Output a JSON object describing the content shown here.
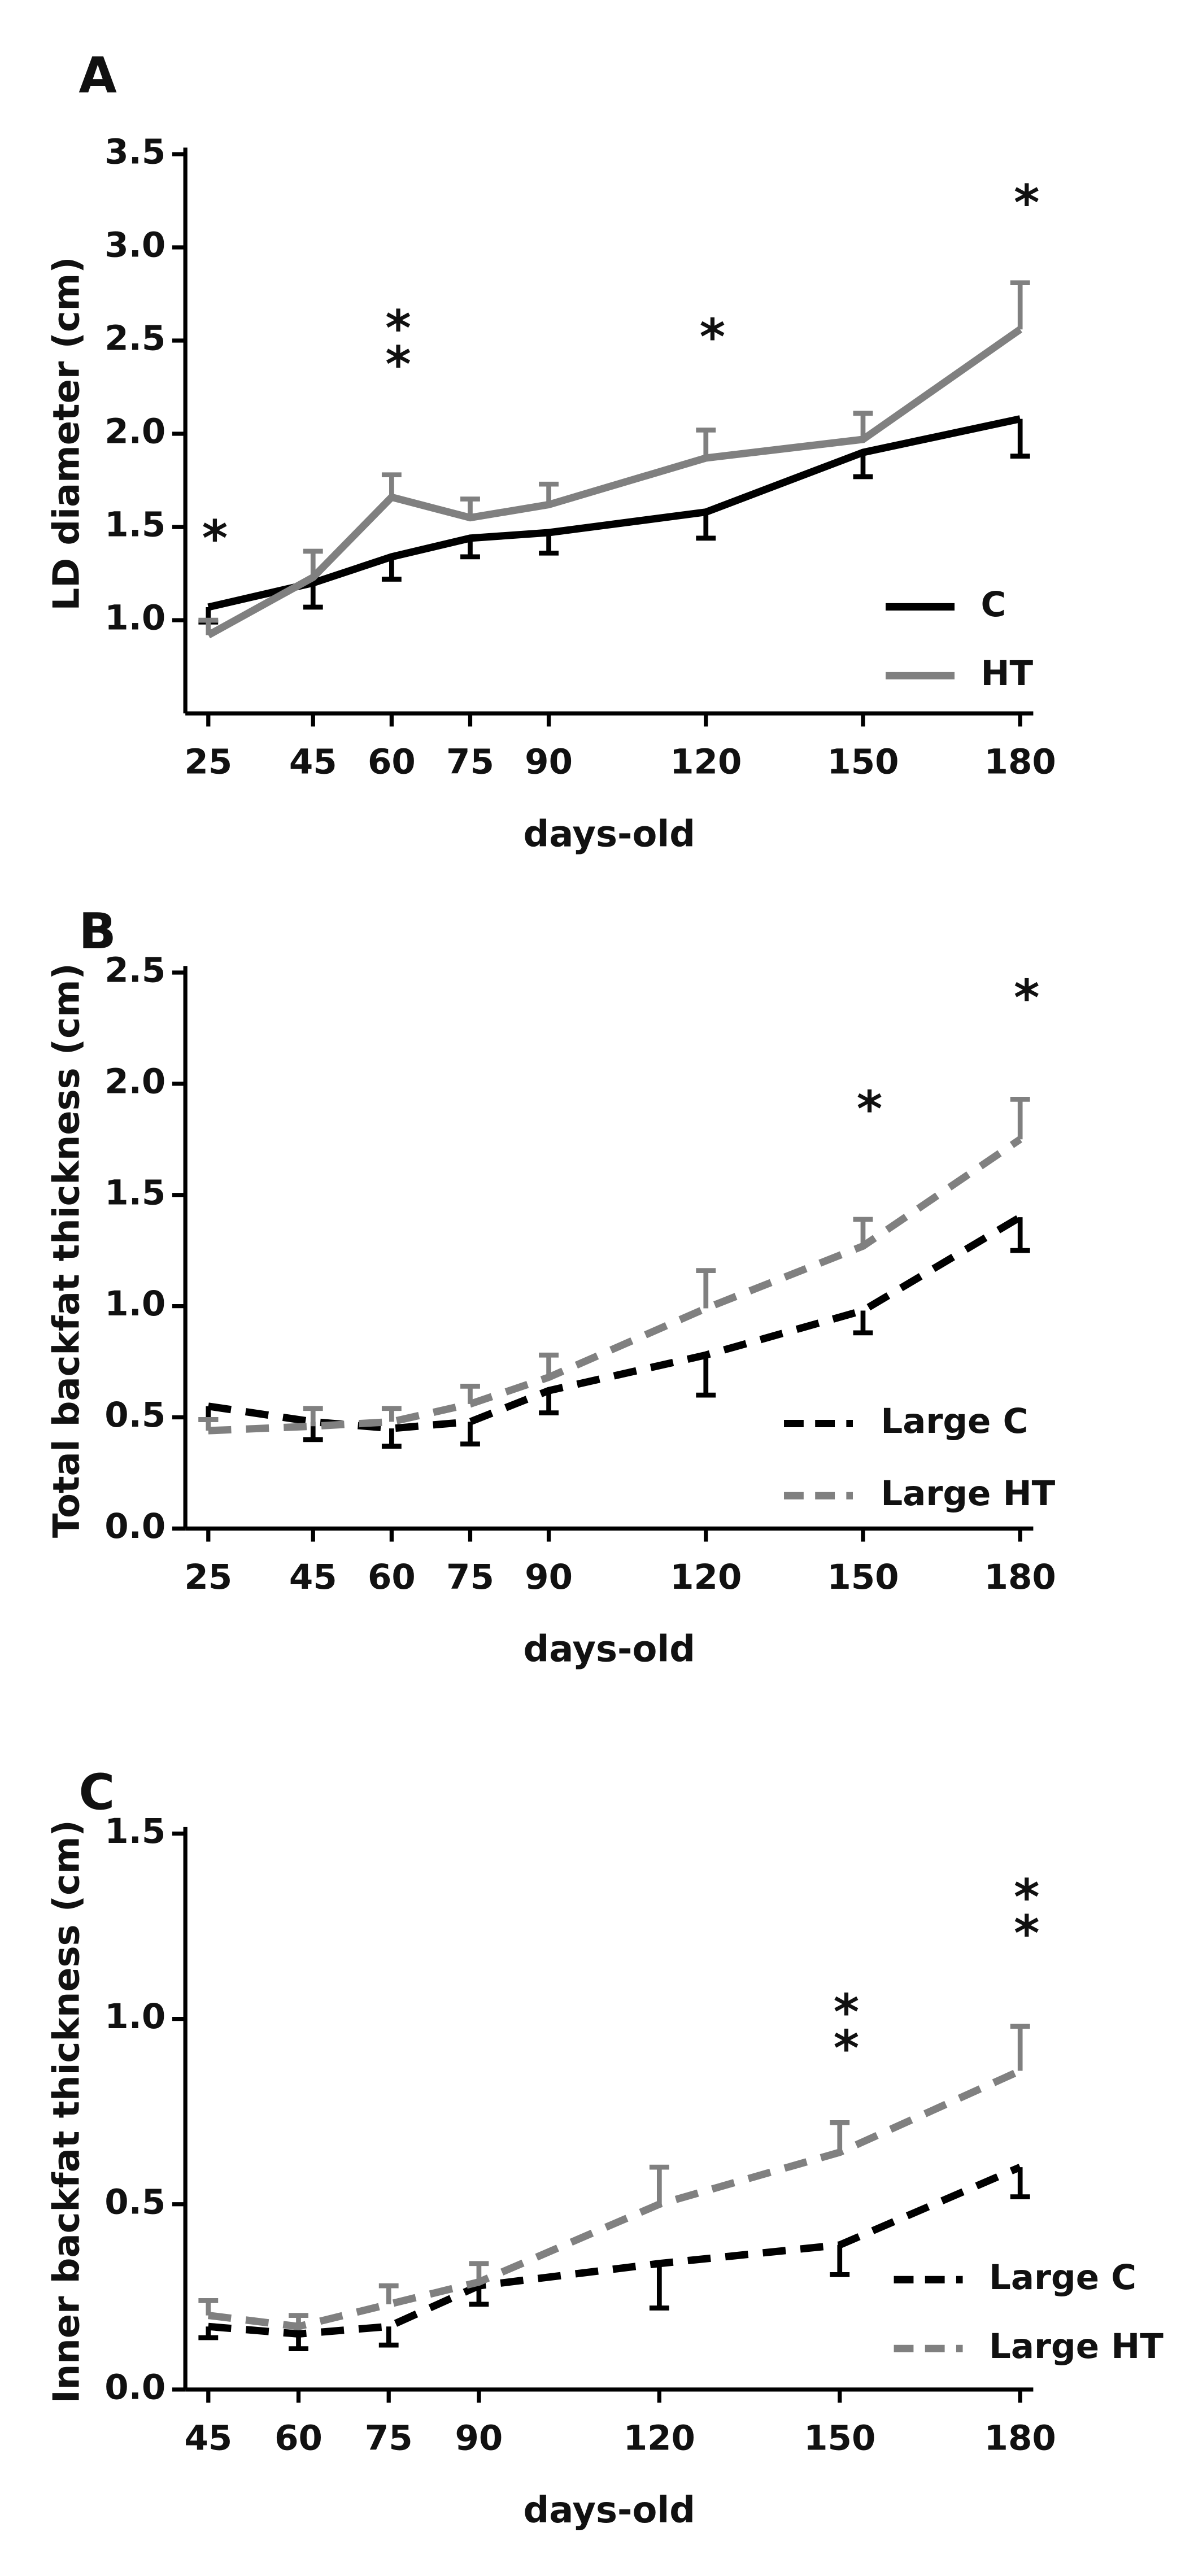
{
  "chart_data": [
    {
      "type": "line",
      "panel": "A",
      "x_label": "days-old",
      "y_label": "LD diameter (cm)",
      "x": [
        25,
        45,
        60,
        75,
        90,
        120,
        150,
        180
      ],
      "xlim": [
        25,
        180
      ],
      "xticks": [
        25,
        45,
        60,
        75,
        90,
        120,
        150,
        180
      ],
      "ylim": [
        0.5,
        3.5
      ],
      "yticks": [
        {
          "value": 1.0,
          "label": "1.0"
        },
        {
          "value": 1.5,
          "label": "1.5"
        },
        {
          "value": 2.0,
          "label": "2.0"
        },
        {
          "value": 2.5,
          "label": "2.5"
        },
        {
          "value": 3.0,
          "label": "3.0"
        },
        {
          "value": 3.5,
          "label": "3.5"
        }
      ],
      "legend": "lower right",
      "series": [
        {
          "name": "C",
          "color": "#000000",
          "line_style": "solid",
          "error_direction": "down",
          "values": [
            1.07,
            1.2,
            1.34,
            1.44,
            1.47,
            1.58,
            1.9,
            2.08
          ],
          "errors": [
            0.08,
            0.13,
            0.12,
            0.1,
            0.11,
            0.14,
            0.13,
            0.2
          ]
        },
        {
          "name": "HT",
          "color": "#808080",
          "line_style": "solid",
          "error_direction": "up",
          "values": [
            0.92,
            1.23,
            1.66,
            1.55,
            1.62,
            1.87,
            1.97,
            2.56
          ],
          "errors": [
            0.08,
            0.14,
            0.12,
            0.1,
            0.11,
            0.15,
            0.14,
            0.25
          ]
        }
      ],
      "annotations": [
        {
          "text": "*",
          "x": 25,
          "y": 1.42
        },
        {
          "text": "**",
          "x": 60,
          "y": 2.45
        },
        {
          "text": "*",
          "x": 120,
          "y": 2.5
        },
        {
          "text": "*",
          "x": 180,
          "y": 3.22
        }
      ]
    },
    {
      "type": "line",
      "panel": "B",
      "x_label": "days-old",
      "y_label": "Total backfat thickness (cm)",
      "x": [
        25,
        45,
        60,
        75,
        90,
        120,
        150,
        180
      ],
      "xlim": [
        25,
        180
      ],
      "xticks": [
        25,
        45,
        60,
        75,
        90,
        120,
        150,
        180
      ],
      "ylim": [
        0,
        2.5
      ],
      "yticks": [
        {
          "value": 0,
          "label": "0.0"
        },
        {
          "value": 0.5,
          "label": "0.5"
        },
        {
          "value": 1.0,
          "label": "1.0"
        },
        {
          "value": 1.5,
          "label": "1.5"
        },
        {
          "value": 2.0,
          "label": "2.0"
        },
        {
          "value": 2.5,
          "label": "2.5"
        }
      ],
      "legend": "lower right",
      "series": [
        {
          "name": "Large C",
          "color": "#000000",
          "line_style": "dashed",
          "error_direction": "down",
          "values": [
            0.55,
            0.48,
            0.45,
            0.48,
            0.62,
            0.78,
            0.98,
            1.4
          ],
          "errors": [
            0.06,
            0.08,
            0.08,
            0.1,
            0.1,
            0.18,
            0.1,
            0.15
          ]
        },
        {
          "name": "Large HT",
          "color": "#808080",
          "line_style": "dashed",
          "error_direction": "up",
          "values": [
            0.44,
            0.46,
            0.48,
            0.56,
            0.68,
            0.99,
            1.27,
            1.75
          ],
          "errors": [
            0.05,
            0.08,
            0.06,
            0.08,
            0.1,
            0.17,
            0.12,
            0.18
          ]
        }
      ],
      "annotations": [
        {
          "text": "*",
          "x": 150,
          "y": 1.87
        },
        {
          "text": "*",
          "x": 180,
          "y": 2.37
        }
      ]
    },
    {
      "type": "line",
      "panel": "C",
      "x_label": "days-old",
      "y_label": "Inner backfat thickness (cm)",
      "x": [
        45,
        60,
        75,
        90,
        120,
        150,
        180
      ],
      "xlim": [
        45,
        180
      ],
      "xticks": [
        45,
        60,
        75,
        90,
        120,
        150,
        180
      ],
      "ylim": [
        0,
        1.5
      ],
      "yticks": [
        {
          "value": 0,
          "label": "0.0"
        },
        {
          "value": 0.5,
          "label": "0.5"
        },
        {
          "value": 1.0,
          "label": "1.0"
        },
        {
          "value": 1.5,
          "label": "1.5"
        }
      ],
      "legend": "lower right",
      "series": [
        {
          "name": "Large C",
          "color": "#000000",
          "line_style": "dashed",
          "error_direction": "down",
          "values": [
            0.17,
            0.15,
            0.17,
            0.28,
            0.34,
            0.39,
            0.6
          ],
          "errors": [
            0.03,
            0.04,
            0.05,
            0.05,
            0.12,
            0.08,
            0.08
          ]
        },
        {
          "name": "Large HT",
          "color": "#808080",
          "line_style": "dashed",
          "error_direction": "up",
          "values": [
            0.2,
            0.17,
            0.23,
            0.29,
            0.5,
            0.64,
            0.86
          ],
          "errors": [
            0.04,
            0.03,
            0.05,
            0.05,
            0.1,
            0.08,
            0.12
          ]
        }
      ],
      "annotations": [
        {
          "text": "**",
          "x": 150,
          "y": 0.96
        },
        {
          "text": "**",
          "x": 180,
          "y": 1.27
        }
      ]
    }
  ]
}
